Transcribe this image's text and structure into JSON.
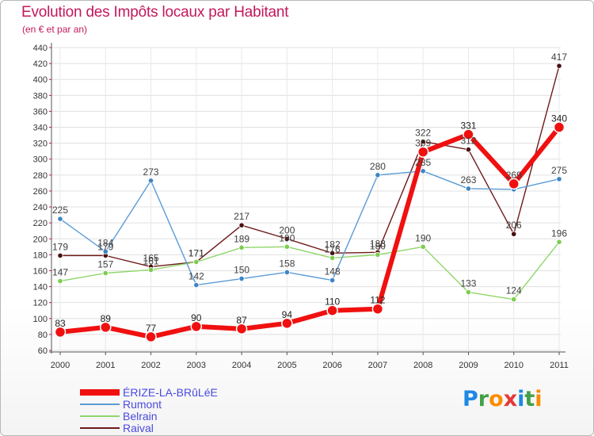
{
  "title": "Evolution des Impôts locaux par Habitant",
  "subtitle": "(en € et par an)",
  "logo": {
    "text": "Proxiti",
    "letters": [
      {
        "ch": "P",
        "color": "#1e88e5"
      },
      {
        "ch": "r",
        "color": "#43a047"
      },
      {
        "ch": "o",
        "color": "#fb8c00"
      },
      {
        "ch": "x",
        "color": "#e53935"
      },
      {
        "ch": "i",
        "color": "#1e88e5"
      },
      {
        "ch": "t",
        "color": "#43a047"
      },
      {
        "ch": "i",
        "color": "#fb8c00"
      }
    ]
  },
  "chart_data": {
    "type": "line",
    "x": [
      2000,
      2001,
      2002,
      2003,
      2004,
      2005,
      2006,
      2007,
      2008,
      2009,
      2010,
      2011
    ],
    "y_ticks": [
      60,
      80,
      100,
      120,
      140,
      160,
      180,
      200,
      220,
      240,
      260,
      280,
      300,
      320,
      340,
      360,
      380,
      400,
      420,
      440
    ],
    "ylim": [
      60,
      440
    ],
    "grid": true,
    "legend_position": "bottom-left",
    "series": [
      {
        "name": "Raival",
        "color": "#6d1a1a",
        "dot": "#4a0f0f",
        "width": 1.4,
        "r": 3.2,
        "values": [
          179,
          179,
          165,
          171,
          217,
          200,
          182,
          183,
          322,
          312,
          206,
          417
        ]
      },
      {
        "name": "Belrain",
        "color": "#8fd66a",
        "dot": "#7ccd4e",
        "width": 1.4,
        "r": 3.2,
        "values": [
          147,
          157,
          161,
          171,
          189,
          190,
          176,
          180,
          190,
          133,
          124,
          196
        ]
      },
      {
        "name": "Rumont",
        "color": "#5b9bd5",
        "dot": "#3d85c6",
        "width": 1.4,
        "r": 3.2,
        "values": [
          225,
          184,
          273,
          142,
          150,
          158,
          148,
          280,
          285,
          263,
          262,
          275
        ]
      },
      {
        "name": "ÉRIZE-LA-BRûLéE",
        "color": "#f01010",
        "dot": "#f01010",
        "width": 6,
        "r": 6.5,
        "values": [
          83,
          89,
          77,
          90,
          87,
          94,
          110,
          112,
          309,
          331,
          269,
          340
        ]
      }
    ],
    "labels": [
      {
        "v": "225",
        "x": 2000,
        "y": 225,
        "color": "#404040"
      },
      {
        "v": "179",
        "x": 2000,
        "y": 179,
        "color": "#404040"
      },
      {
        "v": "147",
        "x": 2000,
        "y": 147,
        "color": "#404040"
      },
      {
        "v": "83",
        "x": 2000,
        "y": 83,
        "color": "#202020"
      },
      {
        "v": "184",
        "x": 2001,
        "y": 184,
        "color": "#404040"
      },
      {
        "v": "179",
        "x": 2001,
        "y": 179,
        "color": "#404040"
      },
      {
        "v": "157",
        "x": 2001,
        "y": 157,
        "color": "#404040"
      },
      {
        "v": "89",
        "x": 2001,
        "y": 89,
        "color": "#202020"
      },
      {
        "v": "273",
        "x": 2002,
        "y": 273,
        "color": "#404040"
      },
      {
        "v": "165",
        "x": 2002,
        "y": 165,
        "color": "#404040"
      },
      {
        "v": "161",
        "x": 2002,
        "y": 161,
        "color": "#404040"
      },
      {
        "v": "77",
        "x": 2002,
        "y": 77,
        "color": "#202020"
      },
      {
        "v": "171",
        "x": 2003,
        "y": 171,
        "color": "#404040"
      },
      {
        "v": "171",
        "x": 2003,
        "y": 171,
        "color": "#404040"
      },
      {
        "v": "142",
        "x": 2003,
        "y": 142,
        "color": "#404040"
      },
      {
        "v": "90",
        "x": 2003,
        "y": 90,
        "color": "#202020"
      },
      {
        "v": "217",
        "x": 2004,
        "y": 217,
        "color": "#404040"
      },
      {
        "v": "189",
        "x": 2004,
        "y": 189,
        "color": "#404040"
      },
      {
        "v": "150",
        "x": 2004,
        "y": 150,
        "color": "#404040"
      },
      {
        "v": "87",
        "x": 2004,
        "y": 87,
        "color": "#202020"
      },
      {
        "v": "200",
        "x": 2005,
        "y": 200,
        "color": "#404040"
      },
      {
        "v": "190",
        "x": 2005,
        "y": 190,
        "color": "#404040"
      },
      {
        "v": "158",
        "x": 2005,
        "y": 158,
        "color": "#404040"
      },
      {
        "v": "94",
        "x": 2005,
        "y": 94,
        "color": "#202020"
      },
      {
        "v": "182",
        "x": 2006,
        "y": 182,
        "color": "#404040"
      },
      {
        "v": "176",
        "x": 2006,
        "y": 176,
        "color": "#404040"
      },
      {
        "v": "148",
        "x": 2006,
        "y": 148,
        "color": "#404040"
      },
      {
        "v": "110",
        "x": 2006,
        "y": 110,
        "color": "#202020"
      },
      {
        "v": "280",
        "x": 2007,
        "y": 280,
        "color": "#404040"
      },
      {
        "v": "183",
        "x": 2007,
        "y": 183,
        "color": "#404040"
      },
      {
        "v": "180",
        "x": 2007,
        "y": 180,
        "color": "#404040"
      },
      {
        "v": "112",
        "x": 2007,
        "y": 112,
        "color": "#202020"
      },
      {
        "v": "322",
        "x": 2008,
        "y": 322,
        "color": "#404040"
      },
      {
        "v": "309",
        "x": 2008,
        "y": 309,
        "color": "#404040"
      },
      {
        "v": "285",
        "x": 2008,
        "y": 285,
        "color": "#404040"
      },
      {
        "v": "190",
        "x": 2008,
        "y": 190,
        "color": "#404040"
      },
      {
        "v": "331",
        "x": 2009,
        "y": 331,
        "color": "#202020"
      },
      {
        "v": "312",
        "x": 2009,
        "y": 312,
        "color": "#404040"
      },
      {
        "v": "263",
        "x": 2009,
        "y": 263,
        "color": "#404040"
      },
      {
        "v": "133",
        "x": 2009,
        "y": 133,
        "color": "#404040"
      },
      {
        "v": "269",
        "x": 2010,
        "y": 269,
        "color": "#404040"
      },
      {
        "v": "206",
        "x": 2010,
        "y": 206,
        "color": "#404040"
      },
      {
        "v": "124",
        "x": 2010,
        "y": 124,
        "color": "#404040"
      },
      {
        "v": "417",
        "x": 2011,
        "y": 417,
        "color": "#404040"
      },
      {
        "v": "340",
        "x": 2011,
        "y": 340,
        "color": "#202020"
      },
      {
        "v": "275",
        "x": 2011,
        "y": 275,
        "color": "#404040"
      },
      {
        "v": "196",
        "x": 2011,
        "y": 196,
        "color": "#404040"
      }
    ],
    "legend": [
      {
        "name": "ÉRIZE-LA-BRûLéE",
        "color": "#f01010",
        "thick": true
      },
      {
        "name": "Rumont",
        "color": "#5b9bd5",
        "thick": false
      },
      {
        "name": "Belrain",
        "color": "#8fd66a",
        "thick": false
      },
      {
        "name": "Raival",
        "color": "#6d1a1a",
        "thick": false
      }
    ],
    "legend_text_color": "#4a4ae0"
  }
}
